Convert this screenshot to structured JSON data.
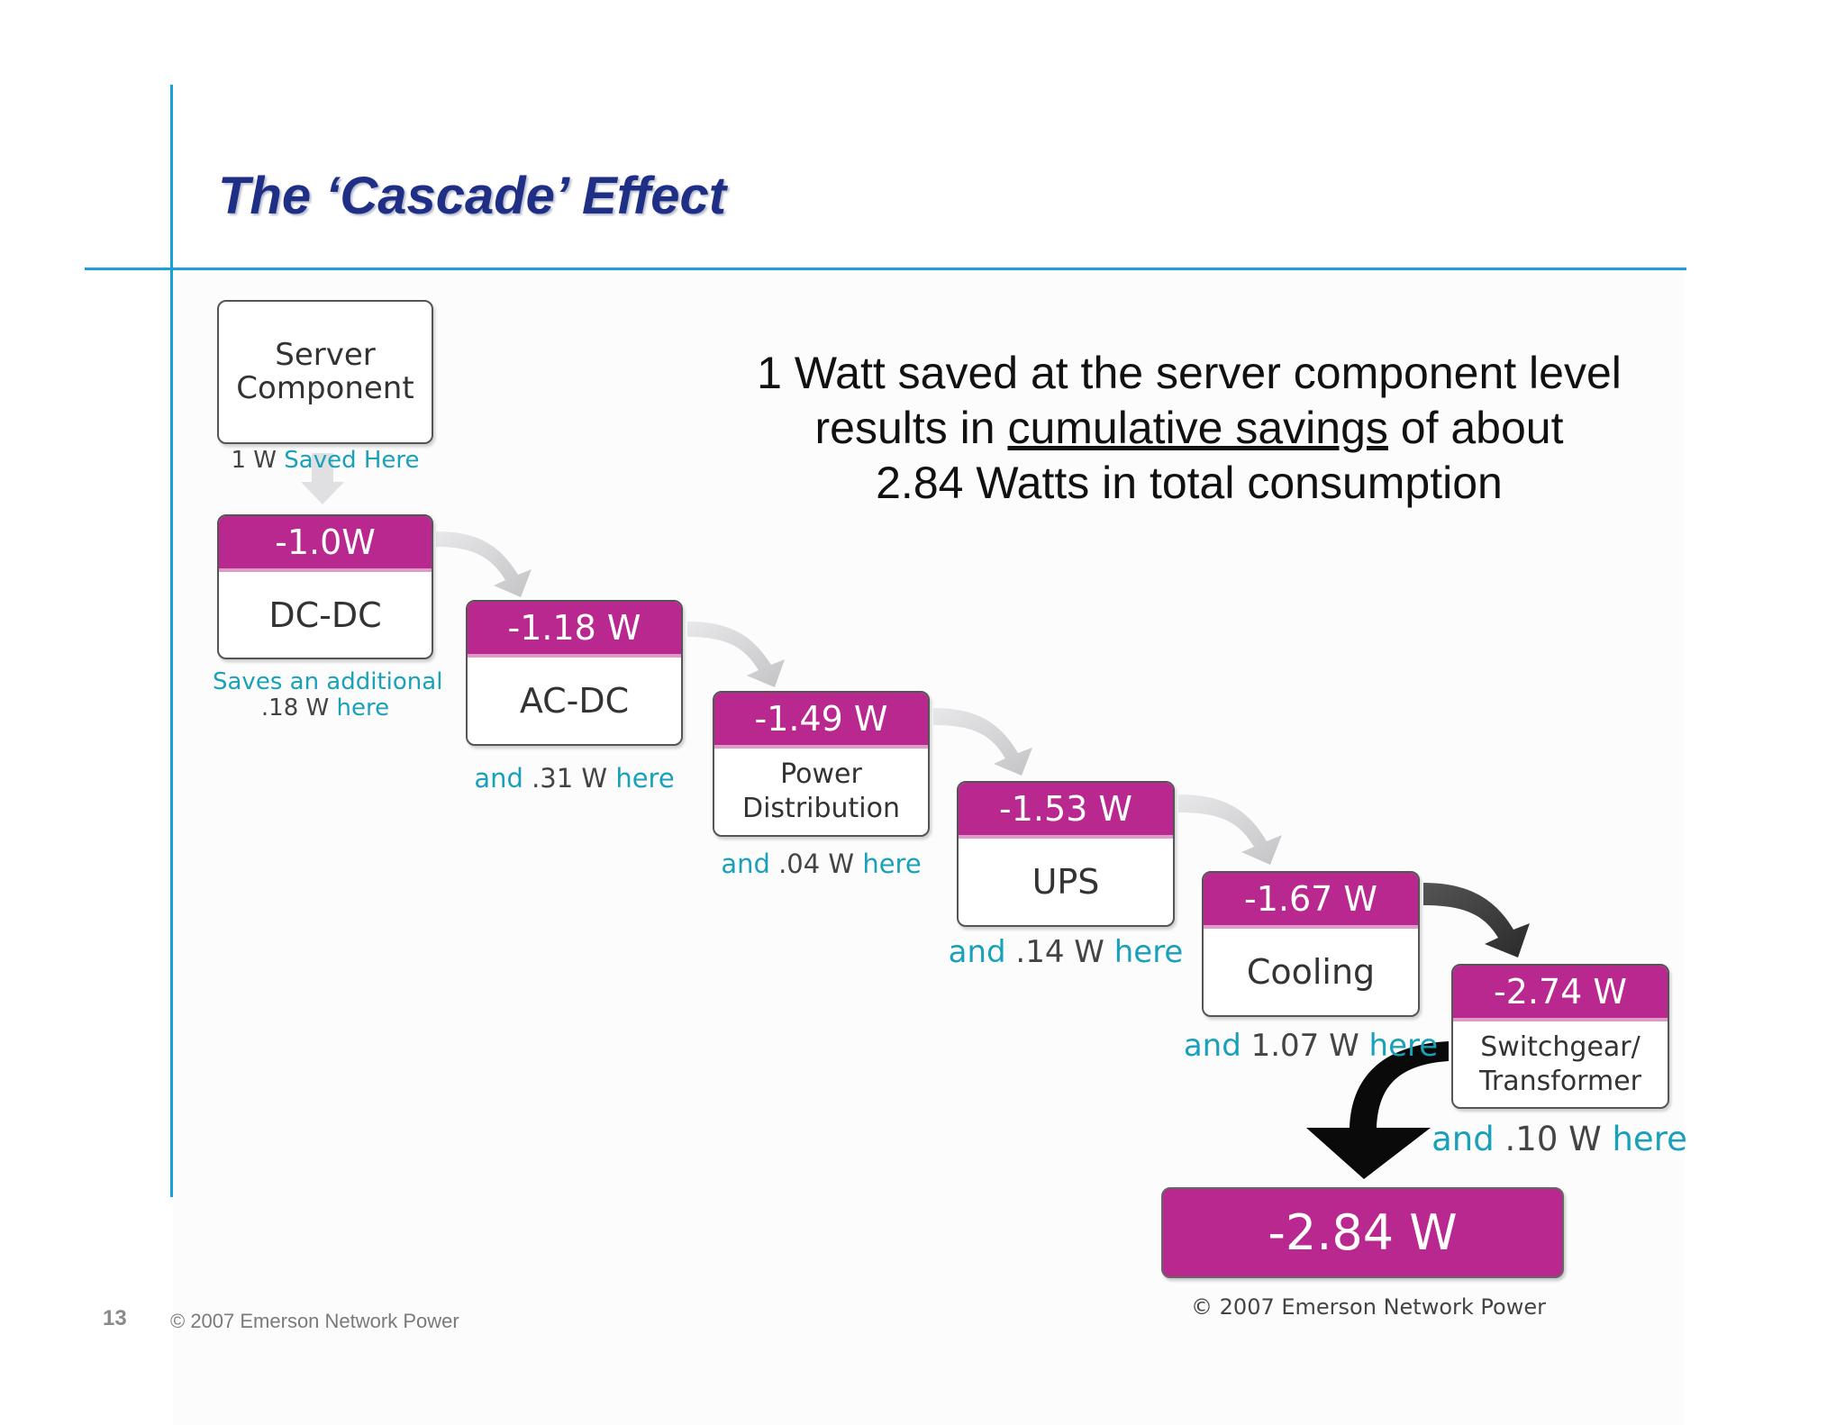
{
  "slide": {
    "title": "The ‘Cascade’ Effect",
    "statement": {
      "line1": "1 Watt saved at the server component level",
      "line2_pre": "results in ",
      "line2_underlined": "cumulative savings",
      "line2_post": " of about",
      "line3": "2.84 Watts in total consumption"
    },
    "page_number": "13",
    "footer": "© 2007 Emerson Network Power"
  },
  "diagram": {
    "start": {
      "line1": "Server",
      "line2": "Component",
      "note_value": "1 W",
      "note_text": "Saved Here"
    },
    "stages": [
      {
        "cumulative": "-1.0W",
        "name": "DC-DC",
        "note_line1": "Saves an additional",
        "note_value": ".18 W",
        "note_text": "here"
      },
      {
        "cumulative": "-1.18 W",
        "name": "AC-DC",
        "note_pre": "and",
        "note_value": ".31 W",
        "note_text": "here"
      },
      {
        "cumulative": "-1.49 W",
        "name_line1": "Power",
        "name_line2": "Distribution",
        "note_pre": "and",
        "note_value": ".04 W",
        "note_text": "here"
      },
      {
        "cumulative": "-1.53 W",
        "name": "UPS",
        "note_pre": "and",
        "note_value": ".14 W",
        "note_text": "here"
      },
      {
        "cumulative": "-1.67 W",
        "name": "Cooling",
        "note_pre": "and",
        "note_value": "1.07 W",
        "note_text": "here"
      },
      {
        "cumulative": "-2.74  W",
        "name_line1": "Switchgear/",
        "name_line2": "Transformer",
        "note_pre": "and",
        "note_value": ".10 W",
        "note_text": "here"
      }
    ],
    "total": "-2.84 W",
    "credit": "© 2007 Emerson Network Power",
    "colors": {
      "header": "#b8288f",
      "accent_text": "#19a1ba",
      "rule": "#1aa0d8",
      "title": "#1f2f86"
    }
  }
}
